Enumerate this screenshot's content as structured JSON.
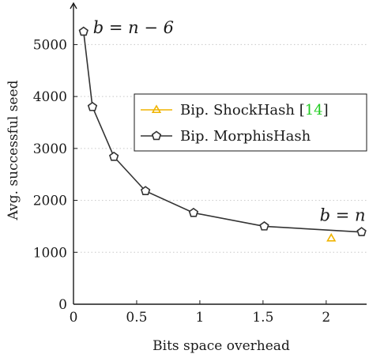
{
  "chart_data": {
    "type": "scatter",
    "title": "",
    "xlabel": "Bits space overhead",
    "ylabel": "Avg. successful seed",
    "xlim": [
      0,
      2.32
    ],
    "ylim": [
      0,
      5600
    ],
    "xticks": [
      0,
      0.5,
      1,
      1.5,
      2
    ],
    "xtick_labels": [
      "0",
      "0.5",
      "1",
      "1.5",
      "2"
    ],
    "yticks": [
      0,
      1000,
      2000,
      3000,
      4000,
      5000
    ],
    "ytick_labels": [
      "0",
      "1000",
      "2000",
      "3000",
      "4000",
      "5000"
    ],
    "grid": "horizontal dotted",
    "legend_placement": "center-right",
    "series": [
      {
        "name": "Bip. ShockHash",
        "ref": "[14]",
        "marker": "triangle",
        "line": false,
        "color": "#f0b400",
        "x": [
          2.04
        ],
        "y": [
          1270
        ]
      },
      {
        "name": "Bip. MorphisHash",
        "marker": "pentagon",
        "line": true,
        "color": "#333333",
        "x": [
          0.08,
          0.15,
          0.32,
          0.57,
          0.95,
          1.51,
          2.28
        ],
        "y": [
          5250,
          3800,
          2840,
          2180,
          1760,
          1500,
          1390
        ]
      }
    ],
    "annotations": [
      {
        "text": "b = n − 6",
        "x": 0.08,
        "y": 5250
      },
      {
        "text": "b = n",
        "x": 2.28,
        "y": 1390
      }
    ]
  }
}
